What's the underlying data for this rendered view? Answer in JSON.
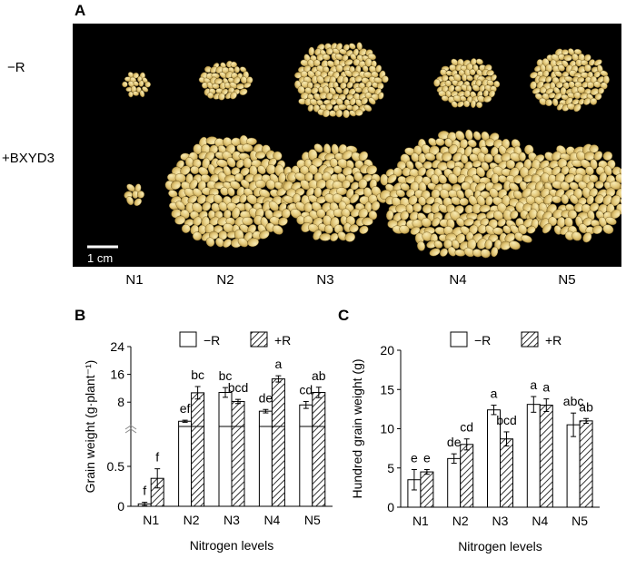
{
  "panelA": {
    "letter": "A",
    "row_labels": [
      "−R",
      "+BXYD3"
    ],
    "col_labels": [
      "N1",
      "N2",
      "N3",
      "N4",
      "N5"
    ],
    "scale_bar": "1 cm"
  },
  "chart_data": [
    {
      "panel": "B",
      "type": "bar",
      "categories": [
        "N1",
        "N2",
        "N3",
        "N4",
        "N5"
      ],
      "xlabel": "Nitrogen levels",
      "ylabel": "Grain weight (g·plant⁻¹)",
      "y_axis": "broken: lower segment 0–1 (ticks 0, 0.5), upper segment 1–24 (ticks 8, 16, 24)",
      "yticks": [
        "0",
        "0.5",
        "8",
        "16",
        "24"
      ],
      "legend_position": "top-right",
      "series": [
        {
          "name": "−R",
          "pattern": "open",
          "values": [
            0.03,
            2.5,
            10.8,
            5.4,
            7.2
          ],
          "errors": [
            0.02,
            0.3,
            1.4,
            0.5,
            1.0
          ],
          "letters": [
            "f",
            "ef",
            "bc",
            "de",
            "cd"
          ]
        },
        {
          "name": "+R",
          "pattern": "hatched",
          "values": [
            0.35,
            10.7,
            8.2,
            14.7,
            10.8
          ],
          "errors": [
            0.12,
            1.8,
            0.6,
            0.9,
            1.5
          ],
          "letters": [
            "f",
            "bc",
            "bcd",
            "a",
            "ab"
          ]
        }
      ]
    },
    {
      "panel": "C",
      "type": "bar",
      "categories": [
        "N1",
        "N2",
        "N3",
        "N4",
        "N5"
      ],
      "xlabel": "Nitrogen levels",
      "ylabel": "Hundred grain weight (g)",
      "ylim": [
        0,
        20
      ],
      "yticks": [
        "0",
        "5",
        "10",
        "15",
        "20"
      ],
      "legend_position": "top-right",
      "series": [
        {
          "name": "−R",
          "pattern": "open",
          "values": [
            3.5,
            6.2,
            12.4,
            13.1,
            10.5
          ],
          "errors": [
            1.3,
            0.6,
            0.6,
            1.0,
            1.5
          ],
          "letters": [
            "e",
            "de",
            "a",
            "a",
            "abc"
          ]
        },
        {
          "name": "+R",
          "pattern": "hatched",
          "values": [
            4.5,
            8.0,
            8.7,
            13.0,
            11.0
          ],
          "errors": [
            0.3,
            0.7,
            0.9,
            0.8,
            0.3
          ],
          "letters": [
            "e",
            "cd",
            "bcd",
            "a",
            "ab"
          ]
        }
      ]
    }
  ]
}
